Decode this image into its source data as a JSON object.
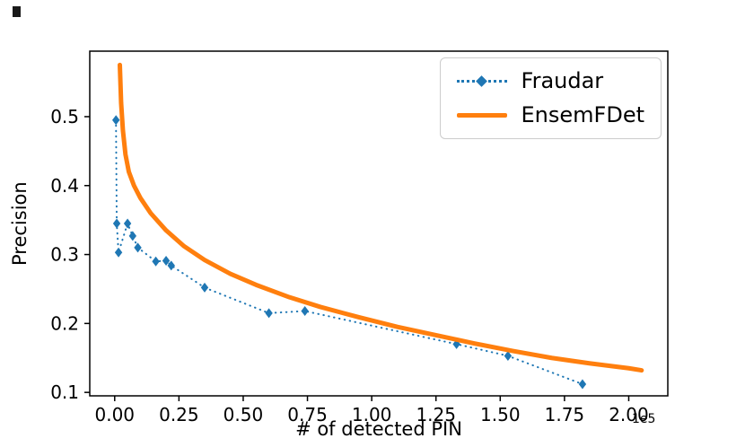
{
  "chart_data": {
    "type": "line",
    "title": "",
    "xlabel": "# of detected PIN",
    "ylabel": "Precision",
    "x_offset_label": "1e5",
    "x_unit_multiplier": 100000,
    "xlim": [
      -0.097,
      2.152
    ],
    "ylim": [
      0.095,
      0.595
    ],
    "xticks": [
      0,
      0.25,
      0.5,
      0.75,
      1.0,
      1.25,
      1.5,
      1.75,
      2.0
    ],
    "xtick_labels": [
      "0.00",
      "0.25",
      "0.50",
      "0.75",
      "1.00",
      "1.25",
      "1.50",
      "1.75",
      "2.00"
    ],
    "yticks": [
      0.1,
      0.2,
      0.3,
      0.4,
      0.5
    ],
    "ytick_labels": [
      "0.1",
      "0.2",
      "0.3",
      "0.4",
      "0.5"
    ],
    "grid": false,
    "legend_position": "upper right",
    "series": [
      {
        "name": "Fraudar",
        "color": "#1f77b4",
        "line_style": "dotted",
        "marker": "diamond",
        "points": [
          [
            0.005,
            0.495
          ],
          [
            0.008,
            0.345
          ],
          [
            0.015,
            0.303
          ],
          [
            0.05,
            0.345
          ],
          [
            0.07,
            0.327
          ],
          [
            0.09,
            0.31
          ],
          [
            0.16,
            0.29
          ],
          [
            0.2,
            0.291
          ],
          [
            0.22,
            0.284
          ],
          [
            0.35,
            0.252
          ],
          [
            0.6,
            0.215
          ],
          [
            0.74,
            0.218
          ],
          [
            1.33,
            0.17
          ],
          [
            1.53,
            0.153
          ],
          [
            1.82,
            0.112
          ]
        ]
      },
      {
        "name": "EnsemFDet",
        "color": "#ff7f0e",
        "line_style": "solid",
        "marker": "none",
        "points": [
          [
            0.02,
            0.575
          ],
          [
            0.025,
            0.52
          ],
          [
            0.032,
            0.48
          ],
          [
            0.042,
            0.445
          ],
          [
            0.055,
            0.42
          ],
          [
            0.075,
            0.4
          ],
          [
            0.1,
            0.382
          ],
          [
            0.14,
            0.36
          ],
          [
            0.2,
            0.335
          ],
          [
            0.27,
            0.312
          ],
          [
            0.35,
            0.292
          ],
          [
            0.45,
            0.272
          ],
          [
            0.55,
            0.256
          ],
          [
            0.68,
            0.238
          ],
          [
            0.8,
            0.224
          ],
          [
            0.95,
            0.209
          ],
          [
            1.1,
            0.195
          ],
          [
            1.25,
            0.183
          ],
          [
            1.4,
            0.171
          ],
          [
            1.55,
            0.16
          ],
          [
            1.7,
            0.15
          ],
          [
            1.85,
            0.142
          ],
          [
            2.0,
            0.135
          ],
          [
            2.05,
            0.132
          ]
        ]
      }
    ]
  }
}
